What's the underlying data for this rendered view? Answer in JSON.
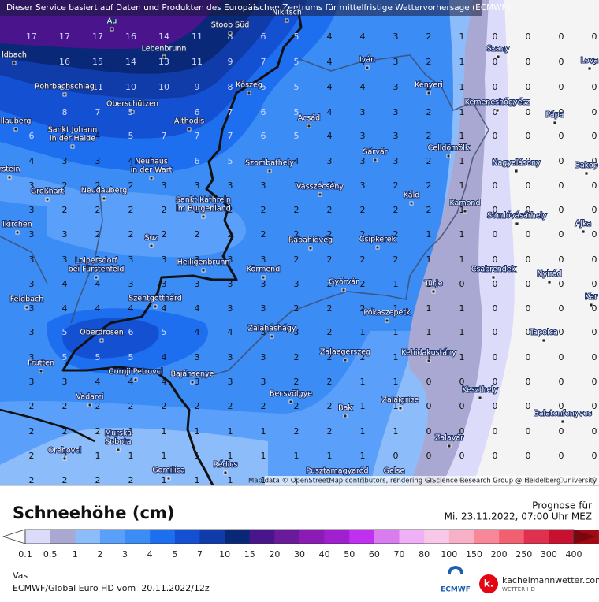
{
  "header": {
    "notice": "Dieser Service basiert auf Daten und Produkten des Europäischen Zentrums für mittelfristige Wettervorhersage (ECMWF)",
    "attribution": "Map data © OpenStreetMap contributors, rendering GIScience Research Group @ Heidelberg University"
  },
  "grid": {
    "rows": [
      [
        17,
        17,
        17,
        16,
        14,
        11,
        8,
        6,
        5,
        4,
        4,
        3,
        2,
        1,
        0,
        0,
        0,
        0
      ],
      [
        null,
        16,
        15,
        14,
        13,
        11,
        9,
        7,
        5,
        4,
        4,
        3,
        2,
        1,
        0,
        0,
        0,
        0
      ],
      [
        null,
        12,
        11,
        10,
        10,
        9,
        8,
        6,
        5,
        4,
        4,
        3,
        2,
        1,
        0,
        0,
        0,
        0
      ],
      [
        null,
        8,
        7,
        5,
        null,
        6,
        7,
        6,
        5,
        4,
        3,
        3,
        2,
        1,
        0,
        0,
        0,
        0
      ],
      [
        6,
        4,
        4,
        5,
        7,
        7,
        7,
        6,
        5,
        4,
        3,
        3,
        2,
        1,
        0,
        0,
        0,
        0
      ],
      [
        4,
        3,
        3,
        4,
        5,
        6,
        5,
        4,
        4,
        3,
        3,
        3,
        2,
        1,
        0,
        0,
        0,
        0
      ],
      [
        3,
        2,
        2,
        2,
        3,
        3,
        3,
        3,
        3,
        3,
        3,
        2,
        2,
        1,
        0,
        0,
        0,
        0
      ],
      [
        3,
        2,
        2,
        2,
        2,
        2,
        2,
        2,
        2,
        2,
        2,
        2,
        2,
        1,
        0,
        0,
        0,
        0
      ],
      [
        3,
        3,
        2,
        2,
        2,
        2,
        2,
        2,
        2,
        2,
        2,
        2,
        1,
        1,
        0,
        0,
        0,
        0
      ],
      [
        3,
        3,
        3,
        3,
        3,
        3,
        3,
        3,
        2,
        2,
        2,
        2,
        1,
        1,
        0,
        0,
        0,
        0
      ],
      [
        3,
        4,
        4,
        3,
        3,
        3,
        3,
        3,
        3,
        2,
        2,
        1,
        1,
        0,
        0,
        0,
        0,
        0
      ],
      [
        3,
        4,
        4,
        4,
        4,
        4,
        3,
        3,
        2,
        2,
        2,
        1,
        1,
        1,
        0,
        0,
        0,
        0
      ],
      [
        3,
        5,
        6,
        6,
        5,
        4,
        4,
        3,
        3,
        2,
        1,
        1,
        1,
        1,
        0,
        0,
        0,
        0
      ],
      [
        3,
        5,
        5,
        5,
        4,
        3,
        3,
        3,
        2,
        2,
        2,
        1,
        1,
        1,
        0,
        0,
        0,
        0
      ],
      [
        3,
        3,
        4,
        4,
        4,
        3,
        3,
        3,
        2,
        2,
        1,
        1,
        0,
        0,
        0,
        0,
        0,
        0
      ],
      [
        2,
        2,
        2,
        2,
        2,
        2,
        2,
        2,
        2,
        2,
        1,
        1,
        0,
        0,
        0,
        0,
        0,
        0
      ],
      [
        2,
        2,
        2,
        1,
        1,
        1,
        1,
        1,
        2,
        2,
        1,
        1,
        0,
        0,
        0,
        0,
        0,
        0
      ],
      [
        2,
        2,
        1,
        1,
        1,
        1,
        1,
        1,
        1,
        1,
        1,
        0,
        0,
        0,
        0,
        0,
        0,
        0
      ],
      [
        2,
        2,
        2,
        2,
        1,
        1,
        1,
        1,
        1,
        1,
        1,
        0,
        0,
        0,
        0,
        0,
        0,
        0
      ]
    ]
  },
  "towns": [
    [
      "Stoob Süd"
    ],
    [
      "Lebenbrunn"
    ],
    [
      "Kőszeg"
    ],
    [
      "Iván"
    ],
    [
      "Kenyeri"
    ],
    [
      "Szany"
    ],
    [
      "Rohrbachschlag"
    ],
    [
      "Oberschützen"
    ],
    [
      "Kemeneshőgyész"
    ],
    [
      "Althodis"
    ],
    [
      "Acsád"
    ],
    [
      "Pápa"
    ],
    [
      "Sankt Johann",
      "in der Haide"
    ],
    [
      "Celldömölk"
    ],
    [
      "Sárvár"
    ],
    [
      "Szombathely"
    ],
    [
      "Nagyalásony"
    ],
    [
      "Neuhaus",
      "in der Wart"
    ],
    [
      "Großhart"
    ],
    [
      "Neudauberg"
    ],
    [
      "Vasszécsény"
    ],
    [
      "Káld"
    ],
    [
      "Sankt Kathrein",
      "im Burgenland"
    ],
    [
      "Kamond"
    ],
    [
      "Somlóvásárhely"
    ],
    [
      "Suz"
    ],
    [
      "Rábahídvég"
    ],
    [
      "Csipkerek"
    ],
    [
      "Ajka"
    ],
    [
      "Heiligenbrunn"
    ],
    [
      "Loipersdorf",
      "bei Fürstenfeld"
    ],
    [
      "Körmend"
    ],
    [
      "Csabrendek"
    ],
    [
      "Nyirád"
    ],
    [
      "Feldbach"
    ],
    [
      "Szentgotthárd"
    ],
    [
      "Győrvár"
    ],
    [
      "Türje"
    ],
    [
      "Pókaszepetk"
    ],
    [
      "Oberdrosen"
    ],
    [
      "Zalaháshágy"
    ],
    [
      "Tapolca"
    ],
    [
      "Zalaegerszeg"
    ],
    [
      "Kehidakustány"
    ],
    [
      "Frutten"
    ],
    [
      "Gornji Petrovci"
    ],
    [
      "Bajánsenye"
    ],
    [
      "Keszthely"
    ],
    [
      "Becsvölgye"
    ],
    [
      "Vadarci"
    ],
    [
      "Zalaigrice"
    ],
    [
      "Bak"
    ],
    [
      "Balatonfenyves"
    ],
    [
      "Murska",
      "Sobota"
    ],
    [
      "Zalavár"
    ],
    [
      "Orehovci"
    ],
    [
      "Rédics"
    ],
    [
      "Gomilica"
    ],
    [
      "Pusztamagyaród"
    ],
    [
      "Gelse"
    ],
    [
      "ldbach"
    ],
    [
      "Au"
    ],
    [
      "Nikitsch"
    ],
    [
      "llauberg"
    ],
    [
      "rstein"
    ],
    [
      "lkirchen"
    ],
    [
      "Lova"
    ],
    [
      "Bakop"
    ],
    [
      "Kar"
    ]
  ],
  "legend": {
    "title": "Schneehöhe (cm)",
    "labels": [
      0.1,
      0.5,
      1,
      2,
      3,
      4,
      5,
      7,
      10,
      15,
      20,
      30,
      40,
      50,
      60,
      70,
      80,
      100,
      150,
      200,
      250,
      300,
      400
    ],
    "colors": [
      "#dcdcfa",
      "#a8a8d2",
      "#8cbcfa",
      "#5aa0fa",
      "#3c8cf5",
      "#1e6ef0",
      "#1450d2",
      "#0f3ca8",
      "#0a2878",
      "#4a148c",
      "#6a1b9a",
      "#8c1ab4",
      "#a020d0",
      "#c030f0",
      "#d87cf0",
      "#f0b0f8",
      "#f8c8e8",
      "#f8b0c8",
      "#f88898",
      "#f06070",
      "#e03050",
      "#c81030",
      "#a00a14"
    ],
    "under_color": "#ffffff",
    "over_color": "#780810"
  },
  "forecast": {
    "label": "Prognose für",
    "time": "Mi. 23.11.2022, 07:00 Uhr MEZ"
  },
  "footer": {
    "region": "Vas",
    "source": "ECMWF/Global Euro HD vom  20.11.2022/12z",
    "ecmwf": "ECMWF",
    "brand_letter": "k.",
    "brand": "kachelmannwetter.com",
    "brand_sub": "WETTER HD"
  }
}
